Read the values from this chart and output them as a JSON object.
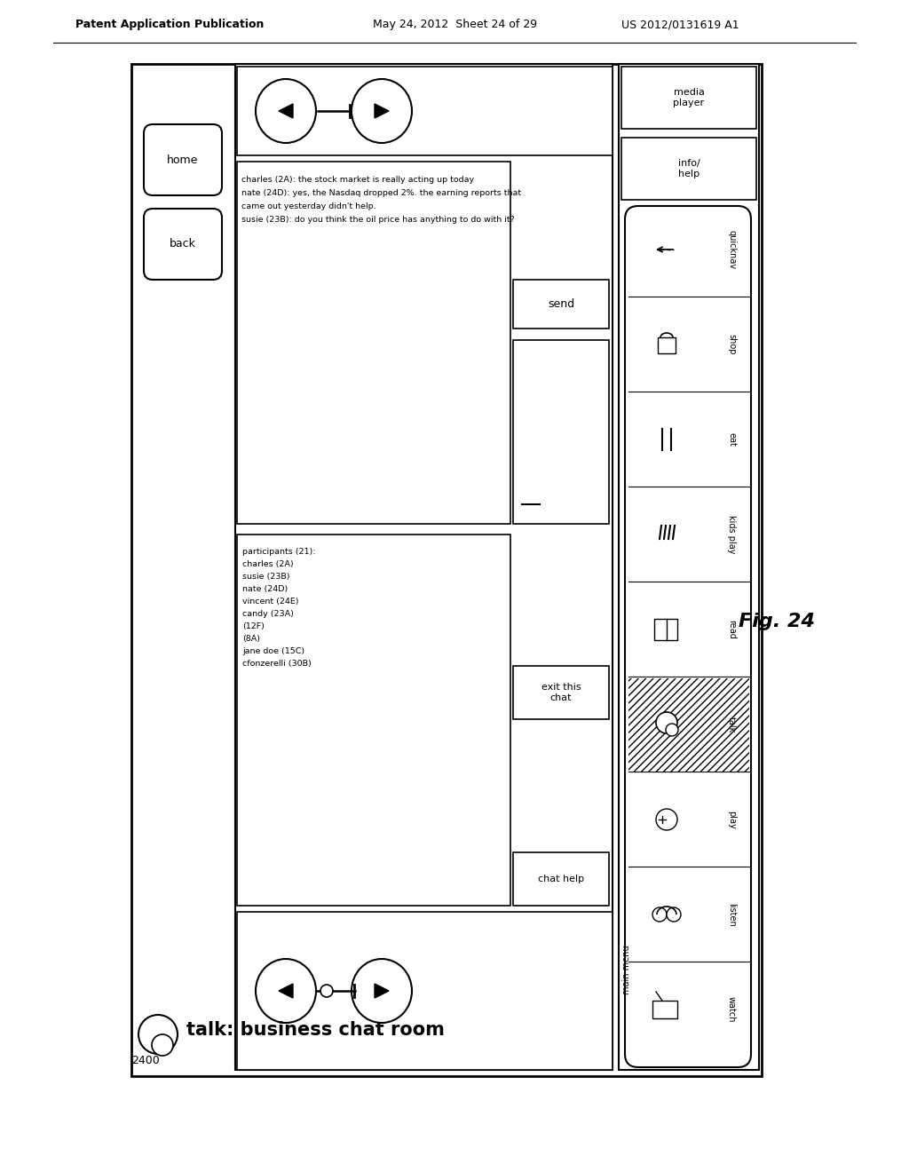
{
  "header_left": "Patent Application Publication",
  "header_mid": "May 24, 2012  Sheet 24 of 29",
  "header_right": "US 2012/0131619 A1",
  "fig_label": "Fig. 24",
  "diagram_label": "2400",
  "title": "talk: business chat room",
  "chat_text_lines": [
    "charles (2A): the stock market is really acting up today",
    "nate (24D): yes, the Nasdaq dropped 2%. the earning reports that",
    "came out yesterday didn't help.",
    "susie (23B): do you think the oil price has anything to do with it?"
  ],
  "participants_lines": [
    "participants (21):",
    "charles (2A)",
    "susie (23B)",
    "nate (24D)",
    "vincent (24E)",
    "candy (23A)",
    "(12F)",
    "(8A)",
    "jane doe (15C)",
    "cfonzerelli (30B)"
  ],
  "send_label": "send",
  "exit_label": "exit this\nchat",
  "chat_help_label": "chat help",
  "main_menu_label": "main menu",
  "right_buttons_top": [
    "media\nplayer",
    "info/\nhelp"
  ],
  "right_buttons_inner": [
    "quicknav",
    "shop",
    "eat",
    "kids play",
    "read",
    "talk",
    "play",
    "listen",
    "watch"
  ],
  "bg_color": "#ffffff"
}
